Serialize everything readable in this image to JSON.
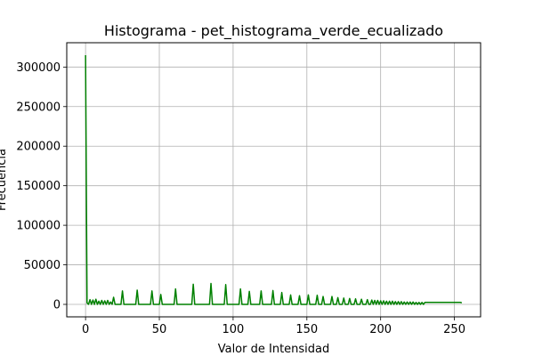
{
  "chart_data": {
    "type": "line",
    "title": "Histograma - pet_histograma_verde_ecualizado",
    "xlabel": "Valor de Intensidad",
    "ylabel": "Frecuencia",
    "xlim": [
      -12.75,
      267.75
    ],
    "ylim": [
      -15750,
      330750
    ],
    "x_ticks": [
      0,
      50,
      100,
      150,
      200,
      250
    ],
    "y_ticks": [
      0,
      50000,
      100000,
      150000,
      200000,
      250000,
      300000
    ],
    "x_tick_labels": [
      "0",
      "50",
      "100",
      "150",
      "200",
      "250"
    ],
    "y_tick_labels": [
      "0",
      "50000",
      "100000",
      "150000",
      "200000",
      "250000",
      "300000"
    ],
    "grid": true,
    "line_color": "#008000",
    "series": [
      {
        "x": [
          0,
          1,
          2,
          3,
          4,
          5,
          6,
          7,
          8,
          9,
          10,
          11,
          12,
          13,
          14,
          15,
          16,
          17,
          18,
          19,
          20,
          22,
          24,
          25,
          26,
          28,
          30,
          32,
          34,
          35,
          36,
          38,
          40,
          42,
          44,
          45,
          46,
          48,
          50,
          51,
          52,
          54,
          56,
          58,
          60,
          61,
          62,
          64,
          66,
          68,
          70,
          72,
          73,
          74,
          76,
          78,
          80,
          82,
          84,
          85,
          86,
          88,
          90,
          92,
          94,
          95,
          96,
          98,
          100,
          102,
          104,
          105,
          106,
          108,
          110,
          111,
          112,
          114,
          116,
          118,
          119,
          120,
          122,
          124,
          126,
          127,
          128,
          130,
          132,
          133,
          134,
          136,
          138,
          139,
          140,
          142,
          144,
          145,
          146,
          148,
          150,
          151,
          152,
          154,
          156,
          157,
          158,
          160,
          161,
          162,
          164,
          166,
          167,
          168,
          170,
          171,
          172,
          174,
          175,
          176,
          178,
          179,
          180,
          182,
          183,
          184,
          186,
          187,
          188,
          190,
          191,
          192,
          193,
          194,
          195,
          196,
          197,
          198,
          199,
          200,
          201,
          202,
          203,
          204,
          205,
          206,
          207,
          208,
          209,
          210,
          211,
          212,
          213,
          214,
          215,
          216,
          217,
          218,
          219,
          220,
          221,
          222,
          223,
          224,
          225,
          226,
          227,
          228,
          229,
          230,
          232,
          234,
          236,
          238,
          240,
          242,
          244,
          246,
          248,
          250,
          252,
          254,
          255
        ],
        "y": [
          315000,
          2000,
          0,
          6000,
          0,
          5500,
          0,
          6500,
          0,
          4000,
          0,
          5000,
          0,
          4500,
          0,
          5000,
          0,
          3000,
          0,
          9000,
          0,
          0,
          0,
          17000,
          0,
          0,
          0,
          0,
          0,
          18000,
          0,
          0,
          0,
          0,
          0,
          17000,
          0,
          0,
          0,
          12500,
          0,
          0,
          0,
          0,
          0,
          19500,
          0,
          0,
          0,
          0,
          0,
          0,
          25500,
          0,
          0,
          0,
          0,
          0,
          0,
          26500,
          0,
          0,
          0,
          0,
          0,
          25000,
          0,
          0,
          0,
          0,
          0,
          19500,
          0,
          0,
          0,
          16500,
          0,
          0,
          0,
          0,
          17000,
          0,
          0,
          0,
          0,
          17500,
          0,
          0,
          0,
          15000,
          0,
          0,
          0,
          12000,
          0,
          0,
          0,
          11000,
          0,
          0,
          0,
          12000,
          0,
          0,
          0,
          11500,
          0,
          0,
          10000,
          0,
          0,
          0,
          10000,
          0,
          0,
          8500,
          0,
          0,
          8000,
          0,
          0,
          7500,
          0,
          0,
          7000,
          0,
          0,
          6500,
          0,
          0,
          6000,
          0,
          0,
          5500,
          0,
          5000,
          0,
          5000,
          0,
          4500,
          0,
          4500,
          0,
          4000,
          0,
          4000,
          0,
          4000,
          0,
          3500,
          0,
          3500,
          0,
          3500,
          0,
          3000,
          0,
          3000,
          0,
          3000,
          0,
          3000,
          0,
          2500,
          0,
          2500,
          0,
          2500,
          0,
          2500,
          2500,
          2500,
          2500,
          2500,
          2500,
          2500,
          2500,
          2500,
          2500,
          2500,
          2500,
          2500,
          2000
        ]
      }
    ]
  }
}
